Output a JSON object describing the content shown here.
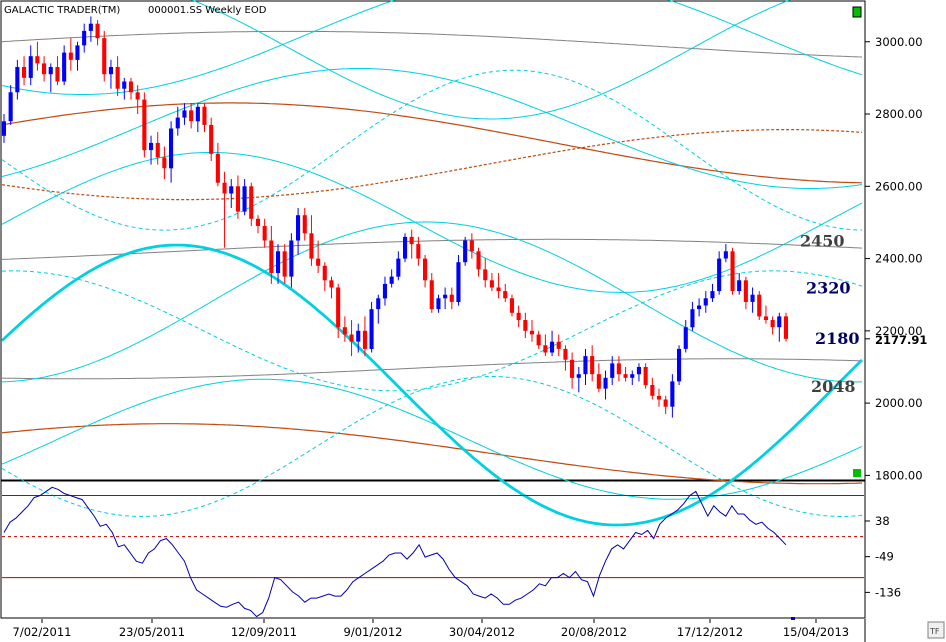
{
  "header": {
    "app_title": "GALACTIC TRADER(TM)",
    "symbol_info": "000001.SS Weekly EOD"
  },
  "corner_badge": "TF",
  "chart_data": [
    {
      "type": "candlestick",
      "title": "",
      "ylim": [
        1790,
        3110
      ],
      "yticks": [
        {
          "value": 3000,
          "label": "3000.00"
        },
        {
          "value": 2800,
          "label": "2800.00"
        },
        {
          "value": 2600,
          "label": "2600.00"
        },
        {
          "value": 2400,
          "label": "2400.00"
        },
        {
          "value": 2200,
          "label": "2200.00"
        },
        {
          "value": 2000,
          "label": "2000.00"
        },
        {
          "value": 1800,
          "label": "1800.00"
        }
      ],
      "xticks": [
        "7/02/2011",
        "23/05/2011",
        "12/09/2011",
        "9/01/2012",
        "30/04/2012",
        "20/08/2012",
        "17/12/2012",
        "15/04/2013"
      ],
      "last_price": {
        "value": 2177.91,
        "label": "2177.91"
      },
      "annotations": [
        {
          "text": "2450",
          "color": "#404040",
          "value": 2450
        },
        {
          "text": "2320",
          "color": "#000066",
          "value": 2320
        },
        {
          "text": "2180",
          "color": "#000066",
          "value": 2180
        },
        {
          "text": "2048",
          "color": "#404040",
          "value": 2048
        }
      ],
      "colors": {
        "up": "#0000ff",
        "down": "#ff0000",
        "cycle": "#00d0e0",
        "orange": "#c04a10",
        "gray": "#808080"
      },
      "candles": [
        {
          "o": 2740,
          "h": 2800,
          "l": 2720,
          "c": 2780
        },
        {
          "o": 2780,
          "h": 2880,
          "l": 2770,
          "c": 2860
        },
        {
          "o": 2860,
          "h": 2950,
          "l": 2840,
          "c": 2930
        },
        {
          "o": 2930,
          "h": 2960,
          "l": 2880,
          "c": 2900
        },
        {
          "o": 2900,
          "h": 2990,
          "l": 2880,
          "c": 2960
        },
        {
          "o": 2960,
          "h": 3000,
          "l": 2920,
          "c": 2940
        },
        {
          "o": 2940,
          "h": 2960,
          "l": 2890,
          "c": 2910
        },
        {
          "o": 2910,
          "h": 2940,
          "l": 2860,
          "c": 2930
        },
        {
          "o": 2930,
          "h": 2960,
          "l": 2880,
          "c": 2890
        },
        {
          "o": 2890,
          "h": 2990,
          "l": 2880,
          "c": 2970
        },
        {
          "o": 2970,
          "h": 3010,
          "l": 2920,
          "c": 2950
        },
        {
          "o": 2950,
          "h": 3000,
          "l": 2920,
          "c": 2990
        },
        {
          "o": 2990,
          "h": 3050,
          "l": 2970,
          "c": 3030
        },
        {
          "o": 3030,
          "h": 3070,
          "l": 3000,
          "c": 3050
        },
        {
          "o": 3050,
          "h": 3060,
          "l": 2990,
          "c": 3010
        },
        {
          "o": 3010,
          "h": 3030,
          "l": 2890,
          "c": 2910
        },
        {
          "o": 2910,
          "h": 2950,
          "l": 2870,
          "c": 2930
        },
        {
          "o": 2930,
          "h": 2960,
          "l": 2850,
          "c": 2870
        },
        {
          "o": 2870,
          "h": 2900,
          "l": 2840,
          "c": 2890
        },
        {
          "o": 2890,
          "h": 2900,
          "l": 2840,
          "c": 2860
        },
        {
          "o": 2860,
          "h": 2880,
          "l": 2800,
          "c": 2840
        },
        {
          "o": 2840,
          "h": 2860,
          "l": 2680,
          "c": 2700
        },
        {
          "o": 2700,
          "h": 2740,
          "l": 2660,
          "c": 2720
        },
        {
          "o": 2720,
          "h": 2750,
          "l": 2660,
          "c": 2680
        },
        {
          "o": 2680,
          "h": 2710,
          "l": 2620,
          "c": 2650
        },
        {
          "o": 2650,
          "h": 2780,
          "l": 2610,
          "c": 2760
        },
        {
          "o": 2760,
          "h": 2820,
          "l": 2740,
          "c": 2790
        },
        {
          "o": 2790,
          "h": 2830,
          "l": 2770,
          "c": 2810
        },
        {
          "o": 2810,
          "h": 2830,
          "l": 2760,
          "c": 2780
        },
        {
          "o": 2780,
          "h": 2830,
          "l": 2750,
          "c": 2820
        },
        {
          "o": 2820,
          "h": 2830,
          "l": 2750,
          "c": 2770
        },
        {
          "o": 2770,
          "h": 2790,
          "l": 2670,
          "c": 2690
        },
        {
          "o": 2690,
          "h": 2720,
          "l": 2600,
          "c": 2610
        },
        {
          "o": 2610,
          "h": 2640,
          "l": 2430,
          "c": 2580
        },
        {
          "o": 2580,
          "h": 2620,
          "l": 2540,
          "c": 2600
        },
        {
          "o": 2600,
          "h": 2630,
          "l": 2510,
          "c": 2530
        },
        {
          "o": 2530,
          "h": 2620,
          "l": 2520,
          "c": 2600
        },
        {
          "o": 2600,
          "h": 2610,
          "l": 2490,
          "c": 2510
        },
        {
          "o": 2510,
          "h": 2520,
          "l": 2470,
          "c": 2490
        },
        {
          "o": 2490,
          "h": 2510,
          "l": 2430,
          "c": 2450
        },
        {
          "o": 2450,
          "h": 2490,
          "l": 2330,
          "c": 2360
        },
        {
          "o": 2360,
          "h": 2440,
          "l": 2330,
          "c": 2420
        },
        {
          "o": 2420,
          "h": 2440,
          "l": 2330,
          "c": 2350
        },
        {
          "o": 2350,
          "h": 2470,
          "l": 2320,
          "c": 2450
        },
        {
          "o": 2450,
          "h": 2540,
          "l": 2410,
          "c": 2520
        },
        {
          "o": 2520,
          "h": 2540,
          "l": 2450,
          "c": 2470
        },
        {
          "o": 2470,
          "h": 2520,
          "l": 2380,
          "c": 2400
        },
        {
          "o": 2400,
          "h": 2450,
          "l": 2360,
          "c": 2380
        },
        {
          "o": 2380,
          "h": 2390,
          "l": 2310,
          "c": 2340
        },
        {
          "o": 2340,
          "h": 2350,
          "l": 2290,
          "c": 2320
        },
        {
          "o": 2320,
          "h": 2330,
          "l": 2180,
          "c": 2210
        },
        {
          "o": 2210,
          "h": 2240,
          "l": 2170,
          "c": 2190
        },
        {
          "o": 2190,
          "h": 2230,
          "l": 2130,
          "c": 2170
        },
        {
          "o": 2170,
          "h": 2220,
          "l": 2140,
          "c": 2200
        },
        {
          "o": 2200,
          "h": 2240,
          "l": 2130,
          "c": 2150
        },
        {
          "o": 2150,
          "h": 2280,
          "l": 2140,
          "c": 2260
        },
        {
          "o": 2260,
          "h": 2300,
          "l": 2220,
          "c": 2290
        },
        {
          "o": 2290,
          "h": 2350,
          "l": 2270,
          "c": 2330
        },
        {
          "o": 2330,
          "h": 2370,
          "l": 2320,
          "c": 2350
        },
        {
          "o": 2350,
          "h": 2420,
          "l": 2340,
          "c": 2400
        },
        {
          "o": 2400,
          "h": 2470,
          "l": 2390,
          "c": 2460
        },
        {
          "o": 2460,
          "h": 2480,
          "l": 2400,
          "c": 2440
        },
        {
          "o": 2440,
          "h": 2460,
          "l": 2380,
          "c": 2400
        },
        {
          "o": 2400,
          "h": 2410,
          "l": 2320,
          "c": 2340
        },
        {
          "o": 2340,
          "h": 2360,
          "l": 2250,
          "c": 2260
        },
        {
          "o": 2260,
          "h": 2300,
          "l": 2250,
          "c": 2290
        },
        {
          "o": 2290,
          "h": 2320,
          "l": 2260,
          "c": 2300
        },
        {
          "o": 2300,
          "h": 2320,
          "l": 2260,
          "c": 2280
        },
        {
          "o": 2280,
          "h": 2410,
          "l": 2270,
          "c": 2390
        },
        {
          "o": 2390,
          "h": 2460,
          "l": 2380,
          "c": 2450
        },
        {
          "o": 2450,
          "h": 2470,
          "l": 2400,
          "c": 2420
        },
        {
          "o": 2420,
          "h": 2430,
          "l": 2350,
          "c": 2370
        },
        {
          "o": 2370,
          "h": 2400,
          "l": 2320,
          "c": 2340
        },
        {
          "o": 2340,
          "h": 2360,
          "l": 2310,
          "c": 2320
        },
        {
          "o": 2320,
          "h": 2360,
          "l": 2290,
          "c": 2310
        },
        {
          "o": 2310,
          "h": 2330,
          "l": 2280,
          "c": 2290
        },
        {
          "o": 2290,
          "h": 2300,
          "l": 2240,
          "c": 2250
        },
        {
          "o": 2250,
          "h": 2270,
          "l": 2210,
          "c": 2230
        },
        {
          "o": 2230,
          "h": 2250,
          "l": 2180,
          "c": 2200
        },
        {
          "o": 2200,
          "h": 2230,
          "l": 2170,
          "c": 2190
        },
        {
          "o": 2190,
          "h": 2200,
          "l": 2150,
          "c": 2160
        },
        {
          "o": 2160,
          "h": 2190,
          "l": 2130,
          "c": 2140
        },
        {
          "o": 2140,
          "h": 2200,
          "l": 2130,
          "c": 2170
        },
        {
          "o": 2170,
          "h": 2190,
          "l": 2130,
          "c": 2150
        },
        {
          "o": 2150,
          "h": 2160,
          "l": 2090,
          "c": 2120
        },
        {
          "o": 2120,
          "h": 2140,
          "l": 2040,
          "c": 2070
        },
        {
          "o": 2070,
          "h": 2100,
          "l": 2030,
          "c": 2080
        },
        {
          "o": 2080,
          "h": 2150,
          "l": 2050,
          "c": 2130
        },
        {
          "o": 2130,
          "h": 2160,
          "l": 2060,
          "c": 2080
        },
        {
          "o": 2080,
          "h": 2110,
          "l": 2030,
          "c": 2040
        },
        {
          "o": 2040,
          "h": 2090,
          "l": 2010,
          "c": 2070
        },
        {
          "o": 2070,
          "h": 2130,
          "l": 2050,
          "c": 2110
        },
        {
          "o": 2110,
          "h": 2130,
          "l": 2060,
          "c": 2080
        },
        {
          "o": 2080,
          "h": 2100,
          "l": 2060,
          "c": 2070
        },
        {
          "o": 2070,
          "h": 2090,
          "l": 2050,
          "c": 2080
        },
        {
          "o": 2080,
          "h": 2110,
          "l": 2060,
          "c": 2100
        },
        {
          "o": 2100,
          "h": 2110,
          "l": 2040,
          "c": 2050
        },
        {
          "o": 2050,
          "h": 2070,
          "l": 2010,
          "c": 2020
        },
        {
          "o": 2020,
          "h": 2040,
          "l": 1990,
          "c": 2010
        },
        {
          "o": 2010,
          "h": 2020,
          "l": 1970,
          "c": 1990
        },
        {
          "o": 1990,
          "h": 2080,
          "l": 1960,
          "c": 2060
        },
        {
          "o": 2060,
          "h": 2160,
          "l": 2050,
          "c": 2150
        },
        {
          "o": 2150,
          "h": 2230,
          "l": 2140,
          "c": 2210
        },
        {
          "o": 2210,
          "h": 2280,
          "l": 2200,
          "c": 2260
        },
        {
          "o": 2260,
          "h": 2290,
          "l": 2240,
          "c": 2270
        },
        {
          "o": 2270,
          "h": 2310,
          "l": 2250,
          "c": 2290
        },
        {
          "o": 2290,
          "h": 2330,
          "l": 2280,
          "c": 2310
        },
        {
          "o": 2310,
          "h": 2420,
          "l": 2300,
          "c": 2400
        },
        {
          "o": 2400,
          "h": 2440,
          "l": 2390,
          "c": 2420
        },
        {
          "o": 2420,
          "h": 2430,
          "l": 2300,
          "c": 2310
        },
        {
          "o": 2310,
          "h": 2360,
          "l": 2300,
          "c": 2340
        },
        {
          "o": 2340,
          "h": 2350,
          "l": 2260,
          "c": 2280
        },
        {
          "o": 2280,
          "h": 2320,
          "l": 2250,
          "c": 2300
        },
        {
          "o": 2300,
          "h": 2310,
          "l": 2230,
          "c": 2240
        },
        {
          "o": 2240,
          "h": 2270,
          "l": 2220,
          "c": 2230
        },
        {
          "o": 2230,
          "h": 2240,
          "l": 2190,
          "c": 2210
        },
        {
          "o": 2210,
          "h": 2250,
          "l": 2170,
          "c": 2240
        },
        {
          "o": 2240,
          "h": 2250,
          "l": 2170,
          "c": 2178
        }
      ]
    },
    {
      "type": "line",
      "title": "",
      "ylim": [
        -196,
        133
      ],
      "yticks": [
        {
          "value": 38,
          "label": "38"
        },
        {
          "value": -49,
          "label": "-49"
        },
        {
          "value": -136,
          "label": "-136"
        }
      ],
      "levels": [
        {
          "value": 100,
          "style": "solid",
          "color": "#c00000"
        },
        {
          "value": 0,
          "style": "dashed",
          "color": "#c00000"
        },
        {
          "value": -100,
          "style": "solid",
          "color": "#c00000"
        }
      ],
      "series": [
        {
          "color": "#0000b0",
          "values": [
            10,
            35,
            45,
            60,
            75,
            95,
            100,
            110,
            120,
            115,
            105,
            100,
            95,
            90,
            70,
            50,
            25,
            30,
            10,
            -25,
            -20,
            -40,
            -60,
            -65,
            -40,
            -30,
            -10,
            -5,
            -20,
            -40,
            -60,
            -100,
            -130,
            -140,
            -150,
            -160,
            -170,
            -172,
            -165,
            -160,
            -175,
            -180,
            -195,
            -185,
            -150,
            -100,
            -105,
            -120,
            -135,
            -145,
            -160,
            -150,
            -150,
            -145,
            -140,
            -145,
            -145,
            -130,
            -110,
            -100,
            -90,
            -80,
            -70,
            -60,
            -45,
            -40,
            -40,
            -55,
            -40,
            -20,
            -50,
            -45,
            -40,
            -55,
            -80,
            -100,
            -110,
            -120,
            -140,
            -145,
            -150,
            -140,
            -150,
            -165,
            -165,
            -155,
            -150,
            -140,
            -130,
            -115,
            -120,
            -100,
            -100,
            -90,
            -100,
            -85,
            -105,
            -110,
            -145,
            -95,
            -60,
            -30,
            -20,
            -30,
            -10,
            10,
            5,
            15,
            -5,
            30,
            45,
            55,
            65,
            80,
            100,
            110,
            80,
            50,
            75,
            60,
            50,
            75,
            55,
            55,
            40,
            30,
            35,
            20,
            10,
            -5,
            -20
          ]
        }
      ]
    }
  ]
}
